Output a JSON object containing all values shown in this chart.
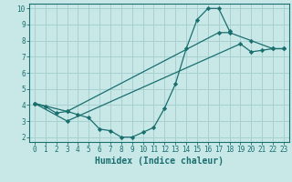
{
  "title": "",
  "xlabel": "Humidex (Indice chaleur)",
  "bg_color": "#c8e8e8",
  "grid_color": "#a8d0d0",
  "line_color": "#1a6e6e",
  "xlim": [
    -0.5,
    23.5
  ],
  "ylim": [
    1.7,
    10.3
  ],
  "xticks": [
    0,
    1,
    2,
    3,
    4,
    5,
    6,
    7,
    8,
    9,
    10,
    11,
    12,
    13,
    14,
    15,
    16,
    17,
    18,
    19,
    20,
    21,
    22,
    23
  ],
  "yticks": [
    2,
    3,
    4,
    5,
    6,
    7,
    8,
    9,
    10
  ],
  "line1_x": [
    0,
    1,
    2,
    3,
    4,
    5,
    6,
    7,
    8,
    9,
    10,
    11,
    12,
    13,
    14,
    15,
    16,
    17,
    18
  ],
  "line1_y": [
    4.1,
    3.9,
    3.5,
    3.6,
    3.4,
    3.2,
    2.5,
    2.4,
    2.0,
    2.0,
    2.3,
    2.6,
    3.8,
    5.3,
    7.5,
    9.3,
    10.0,
    10.0,
    8.6
  ],
  "line2_x": [
    0,
    3,
    19,
    20,
    21,
    22,
    23
  ],
  "line2_y": [
    4.1,
    3.0,
    7.8,
    7.3,
    7.4,
    7.5,
    7.5
  ],
  "line3_x": [
    0,
    3,
    17,
    18,
    20,
    22,
    23
  ],
  "line3_y": [
    4.1,
    3.6,
    8.5,
    8.5,
    8.0,
    7.5,
    7.5
  ],
  "xlabel_fontsize": 7,
  "tick_fontsize": 5.5
}
